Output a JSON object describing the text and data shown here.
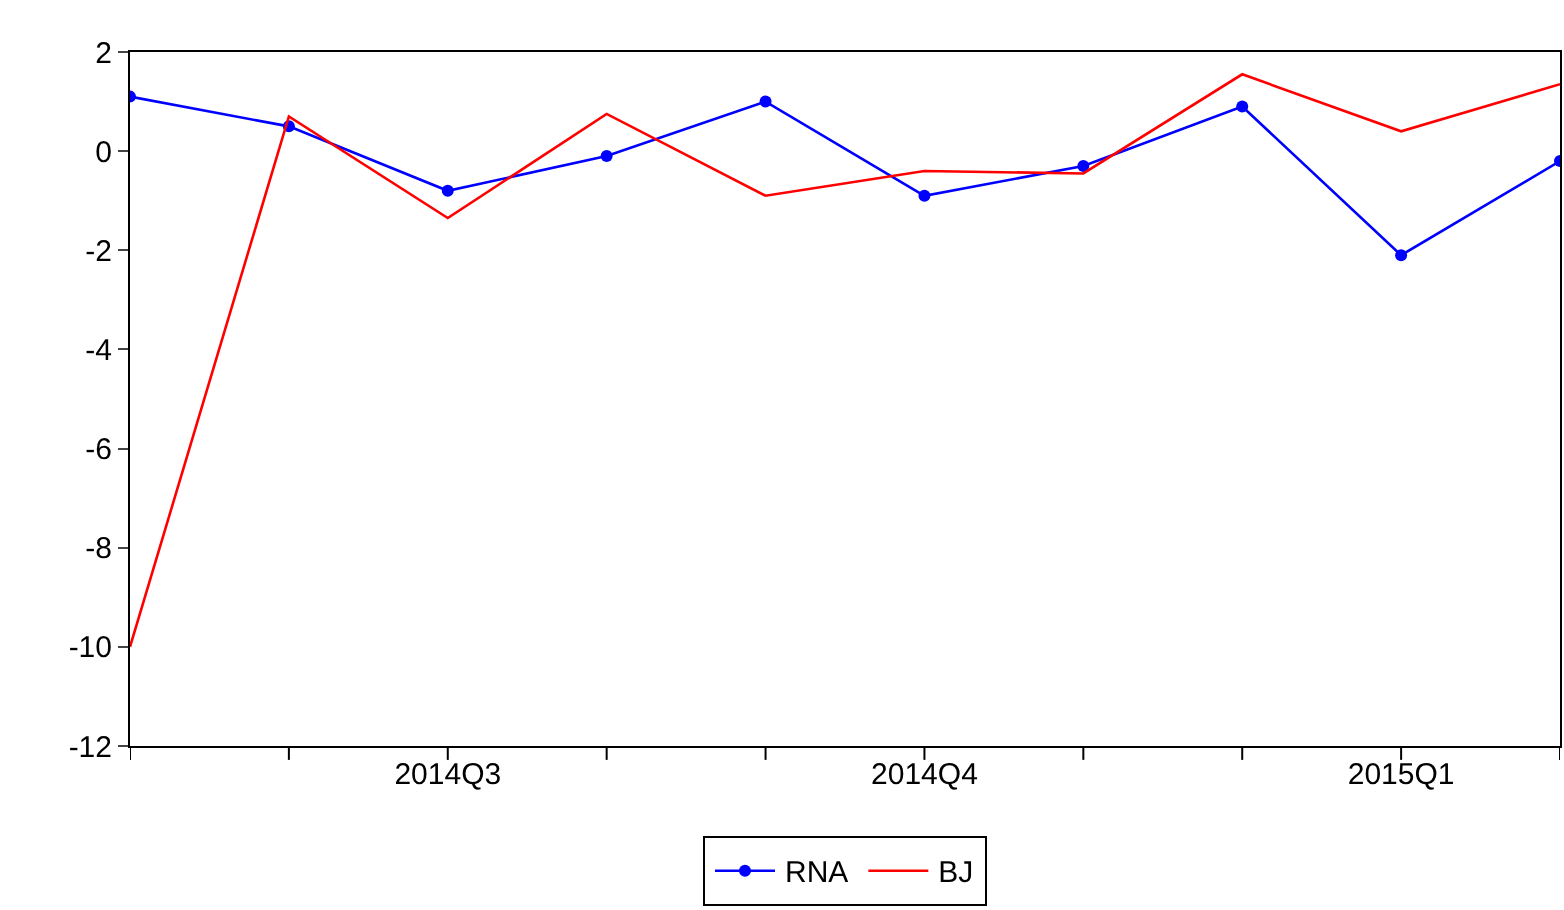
{
  "chart_data": {
    "type": "line",
    "categories": [
      null,
      null,
      "2014Q3",
      null,
      null,
      "2014Q4",
      null,
      null,
      "2015Q1",
      null
    ],
    "ylim": [
      -12,
      2
    ],
    "yticks": [
      -12,
      -10,
      -8,
      -6,
      -4,
      -2,
      0,
      2
    ],
    "legend": "bottom",
    "line_style": "solid",
    "series": [
      {
        "name": "RNA",
        "color": "#0000ff",
        "marker": "circle",
        "values": [
          1.1,
          0.5,
          -0.8,
          -0.1,
          1.0,
          -0.9,
          -0.3,
          0.9,
          -2.1,
          -0.2
        ]
      },
      {
        "name": "BJ",
        "color": "#ff0000",
        "marker": "none",
        "values": [
          -10.0,
          0.7,
          -1.35,
          0.75,
          -0.9,
          -0.4,
          -0.45,
          1.55,
          0.4,
          1.35
        ]
      }
    ]
  }
}
